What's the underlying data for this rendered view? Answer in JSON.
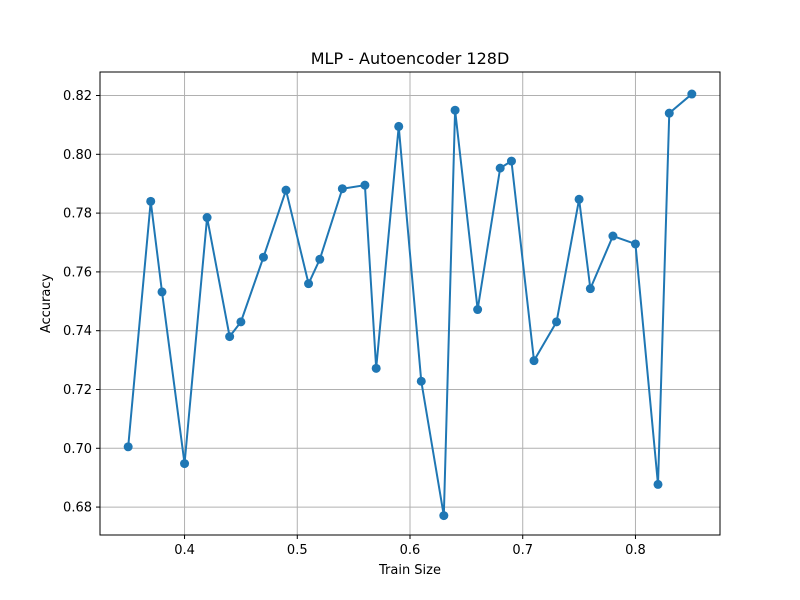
{
  "chart_data": {
    "type": "line",
    "title": "MLP - Autoencoder 128D",
    "xlabel": "Train Size",
    "ylabel": "Accuracy",
    "xlim": [
      0.325,
      0.875
    ],
    "ylim": [
      0.6705,
      0.828
    ],
    "xticks": [
      0.4,
      0.5,
      0.6,
      0.7,
      0.8
    ],
    "xtick_labels": [
      "0.4",
      "0.5",
      "0.6",
      "0.7",
      "0.8"
    ],
    "yticks": [
      0.68,
      0.7,
      0.72,
      0.74,
      0.76,
      0.78,
      0.8,
      0.82
    ],
    "ytick_labels": [
      "0.68",
      "0.70",
      "0.72",
      "0.74",
      "0.76",
      "0.78",
      "0.80",
      "0.82"
    ],
    "grid": true,
    "color": "#1f77b4",
    "marker": "circle",
    "series": [
      {
        "x": [
          0.35,
          0.37,
          0.38,
          0.4,
          0.42,
          0.44,
          0.45,
          0.47,
          0.49,
          0.51,
          0.52,
          0.54,
          0.56,
          0.57,
          0.59,
          0.61,
          0.63,
          0.64,
          0.66,
          0.68,
          0.69,
          0.71,
          0.73,
          0.75,
          0.76,
          0.78,
          0.8,
          0.82,
          0.83,
          0.85
        ],
        "values": [
          0.7005,
          0.784,
          0.7532,
          0.6948,
          0.7785,
          0.738,
          0.743,
          0.765,
          0.7878,
          0.756,
          0.7643,
          0.7883,
          0.7895,
          0.7272,
          0.8095,
          0.7228,
          0.6771,
          0.815,
          0.7472,
          0.7953,
          0.7977,
          0.7298,
          0.743,
          0.7847,
          0.7543,
          0.7722,
          0.7695,
          0.6877,
          0.814,
          0.8205
        ]
      }
    ]
  }
}
